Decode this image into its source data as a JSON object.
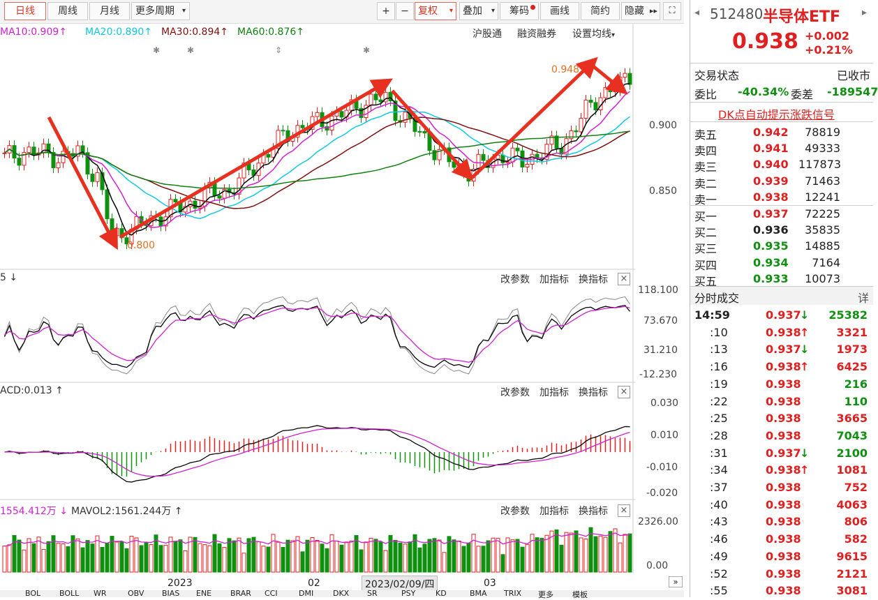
{
  "toolbar": {
    "tabs": [
      "日线",
      "周线",
      "月线",
      "更多周期"
    ],
    "plus": "+",
    "minus": "−",
    "fuquan": "复权",
    "diejia": "叠加",
    "chouma": "筹码",
    "huaxian": "画线",
    "jianyue": "简约",
    "yincang": "隐藏"
  },
  "ma": {
    "ma10": "MA10:0.909",
    "ma20": "MA20:0.890",
    "ma30": "MA30:0.894",
    "ma60": "MA60:0.876",
    "arrow": "↑",
    "links": [
      "沪股通",
      "融资融券",
      "设置均线"
    ]
  },
  "price_axis": [
    "0.900",
    "0.850"
  ],
  "annot": {
    "low": "0.800",
    "high": "0.948"
  },
  "sub1": {
    "label": "5 ↓",
    "axis": [
      "118.100",
      "73.670",
      "31.210",
      "-12.230"
    ]
  },
  "sub2": {
    "label": "ACD:0.013 ↑",
    "axis": [
      "0.030",
      "0.010",
      "-0.010",
      "-0.020"
    ]
  },
  "sub3": {
    "label1": "1554.412万 ↓",
    "label2": "MAVOL2:1561.244万 ↑",
    "axis": [
      "2326.00",
      "0.00"
    ]
  },
  "subbtns": [
    "改参数",
    "加指标",
    "换指标"
  ],
  "close": "×",
  "xaxis": {
    "y2023": "2023",
    "m02": "02",
    "cursor": "2023/02/09/四",
    "m03": "03"
  },
  "bottom_tabs": [
    "BOL",
    "BOLL",
    "WR",
    "OBV",
    "BIAS",
    "ENE",
    "BRAR",
    "CCI",
    "DMI",
    "DKX",
    "SR",
    "PSY",
    "KD",
    "BMA",
    "TRIX",
    "更多",
    "模板"
  ],
  "right": {
    "code": "512480",
    "name": "半导体ETF",
    "price": "0.938",
    "change": "+0.002",
    "pct": "+0.21%",
    "status_label": "交易状态",
    "status_val": "已收市",
    "weibi_label": "委比",
    "weibi_val": "-40.34%",
    "weicha_label": "委差",
    "weicha_val": "-189547",
    "dk": "DK点自动提示涨跌信号",
    "sell": [
      {
        "l": "卖五",
        "p": "0.942",
        "v": "78819"
      },
      {
        "l": "卖四",
        "p": "0.941",
        "v": "49333"
      },
      {
        "l": "卖三",
        "p": "0.940",
        "v": "117873"
      },
      {
        "l": "卖二",
        "p": "0.939",
        "v": "71463"
      },
      {
        "l": "卖一",
        "p": "0.938",
        "v": "12241"
      }
    ],
    "buy": [
      {
        "l": "买一",
        "p": "0.937",
        "v": "72225"
      },
      {
        "l": "买二",
        "p": "0.936",
        "v": "35835"
      },
      {
        "l": "买三",
        "p": "0.935",
        "v": "14885"
      },
      {
        "l": "买四",
        "p": "0.934",
        "v": "7164"
      },
      {
        "l": "买五",
        "p": "0.933",
        "v": "10073"
      }
    ],
    "ticks_title": "分时成交",
    "ticks_more": "详",
    "ticks": [
      {
        "t": "14:59",
        "p": "0.937",
        "d": "down",
        "v": "25382",
        "vc": "green"
      },
      {
        "t": ":10",
        "p": "0.938",
        "d": "up",
        "v": "3321",
        "vc": "red"
      },
      {
        "t": ":13",
        "p": "0.937",
        "d": "down",
        "v": "1973",
        "vc": "red"
      },
      {
        "t": ":16",
        "p": "0.938",
        "d": "up",
        "v": "6425",
        "vc": "red"
      },
      {
        "t": ":19",
        "p": "0.938",
        "d": "",
        "v": "216",
        "vc": "green"
      },
      {
        "t": ":22",
        "p": "0.938",
        "d": "",
        "v": "110",
        "vc": "green"
      },
      {
        "t": ":25",
        "p": "0.938",
        "d": "",
        "v": "3665",
        "vc": "red"
      },
      {
        "t": ":28",
        "p": "0.938",
        "d": "",
        "v": "7043",
        "vc": "green"
      },
      {
        "t": ":31",
        "p": "0.937",
        "d": "down",
        "v": "2100",
        "vc": "green"
      },
      {
        "t": ":34",
        "p": "0.938",
        "d": "up",
        "v": "1081",
        "vc": "red"
      },
      {
        "t": ":37",
        "p": "0.938",
        "d": "",
        "v": "752",
        "vc": "red"
      },
      {
        "t": ":40",
        "p": "0.938",
        "d": "",
        "v": "4063",
        "vc": "red"
      },
      {
        "t": ":43",
        "p": "0.938",
        "d": "",
        "v": "806",
        "vc": "red"
      },
      {
        "t": ":46",
        "p": "0.938",
        "d": "",
        "v": "582",
        "vc": "red"
      },
      {
        "t": ":49",
        "p": "0.938",
        "d": "",
        "v": "9615",
        "vc": "red"
      },
      {
        "t": ":52",
        "p": "0.938",
        "d": "",
        "v": "2121",
        "vc": "red"
      },
      {
        "t": ":55",
        "p": "0.938",
        "d": "",
        "v": "3081",
        "vc": "red"
      }
    ]
  }
}
